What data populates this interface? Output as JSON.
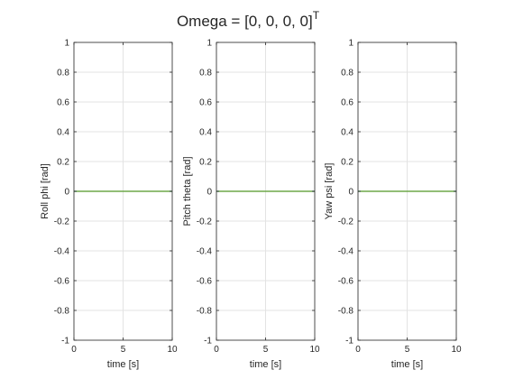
{
  "figure": {
    "title": "Omega = [0, 0, 0, 0]",
    "title_superscript": "T"
  },
  "chart_data": [
    {
      "type": "line",
      "ylabel": "Roll phi [rad]",
      "xlabel": "time [s]",
      "xlim": [
        0,
        10
      ],
      "ylim": [
        -1,
        1
      ],
      "x_ticks": [
        0,
        5,
        10
      ],
      "y_ticks": [
        -1,
        -0.8,
        -0.6,
        -0.4,
        -0.2,
        0,
        0.2,
        0.4,
        0.6,
        0.8,
        1
      ],
      "grid": true,
      "series": [
        {
          "x": [
            0,
            10
          ],
          "values": [
            0,
            0
          ],
          "color": "#0072BD"
        },
        {
          "x": [
            0,
            10
          ],
          "values": [
            0,
            0
          ],
          "color": "#77AC30"
        }
      ]
    },
    {
      "type": "line",
      "ylabel": "Pitch theta [rad]",
      "xlabel": "time [s]",
      "xlim": [
        0,
        10
      ],
      "ylim": [
        -1,
        1
      ],
      "x_ticks": [
        0,
        5,
        10
      ],
      "y_ticks": [
        -1,
        -0.8,
        -0.6,
        -0.4,
        -0.2,
        0,
        0.2,
        0.4,
        0.6,
        0.8,
        1
      ],
      "grid": true,
      "series": [
        {
          "x": [
            0,
            10
          ],
          "values": [
            0,
            0
          ],
          "color": "#0072BD"
        },
        {
          "x": [
            0,
            10
          ],
          "values": [
            0,
            0
          ],
          "color": "#77AC30"
        }
      ]
    },
    {
      "type": "line",
      "ylabel": "Yaw psi [rad]",
      "xlabel": "time [s]",
      "xlim": [
        0,
        10
      ],
      "ylim": [
        -1,
        1
      ],
      "x_ticks": [
        0,
        5,
        10
      ],
      "y_ticks": [
        -1,
        -0.8,
        -0.6,
        -0.4,
        -0.2,
        0,
        0.2,
        0.4,
        0.6,
        0.8,
        1
      ],
      "grid": true,
      "series": [
        {
          "x": [
            0,
            10
          ],
          "values": [
            0,
            0
          ],
          "color": "#0072BD"
        },
        {
          "x": [
            0,
            10
          ],
          "values": [
            0,
            0
          ],
          "color": "#77AC30"
        }
      ]
    }
  ]
}
